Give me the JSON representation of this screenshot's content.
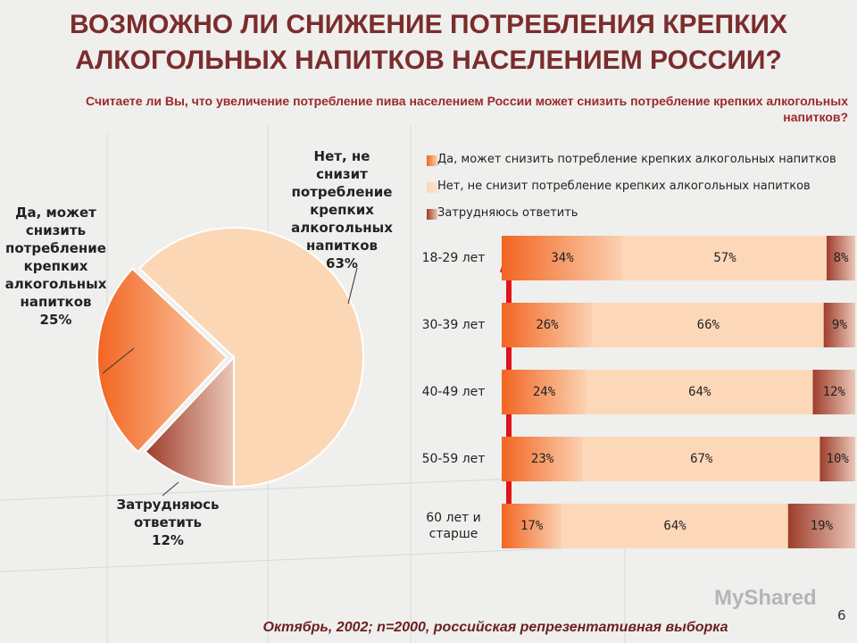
{
  "slide": {
    "title": "ВОЗМОЖНО ЛИ СНИЖЕНИЕ ПОТРЕБЛЕНИЯ КРЕПКИХ АЛКОГОЛЬНЫХ НАПИТКОВ НАСЕЛЕНИЕМ РОССИИ?",
    "question": "Считаете ли Вы, что увеличение потребление пива населением России может снизить  потребление крепких алкогольных напитков?",
    "footnote": "Октябрь, 2002; n=2000, российская репрезентативная выборка",
    "page_number": "6",
    "watermark": "MyShared"
  },
  "chart_data": [
    {
      "type": "pie",
      "categories": [
        "Да, может снизить потребление крепких алкогольных напитков",
        "Нет, не снизит потребление крепких алкогольных напитков",
        "Затрудняюсь ответить"
      ],
      "values": [
        25,
        63,
        12
      ],
      "value_labels": [
        "25%",
        "63%",
        "12%"
      ],
      "colors": [
        "#f07a3c",
        "#fcd7b6",
        "#a5503a"
      ]
    },
    {
      "type": "bar",
      "orientation": "horizontal",
      "stacked": true,
      "categories": [
        "18-29 лет",
        "30-39 лет",
        "40-49 лет",
        "50-59 лет",
        "60 лет и старше"
      ],
      "series": [
        {
          "name": "Да, может снизить потребление крепких алкогольных напитков",
          "color": "#f26a2a",
          "values": [
            34,
            26,
            24,
            23,
            17
          ],
          "value_labels": [
            "34%",
            "26%",
            "24%",
            "23%",
            "17%"
          ]
        },
        {
          "name": "Нет, не снизит потребление крепких алкогольных напитков",
          "color": "#fdd8b8",
          "values": [
            57,
            66,
            64,
            67,
            64
          ],
          "value_labels": [
            "57%",
            "66%",
            "64%",
            "67%",
            "64%"
          ]
        },
        {
          "name": "Затрудняюсь ответить",
          "color": "#9e3d2c",
          "values": [
            8,
            9,
            12,
            10,
            19
          ],
          "value_labels": [
            "8%",
            "9%",
            "12%",
            "10%",
            "19%"
          ]
        }
      ]
    }
  ]
}
